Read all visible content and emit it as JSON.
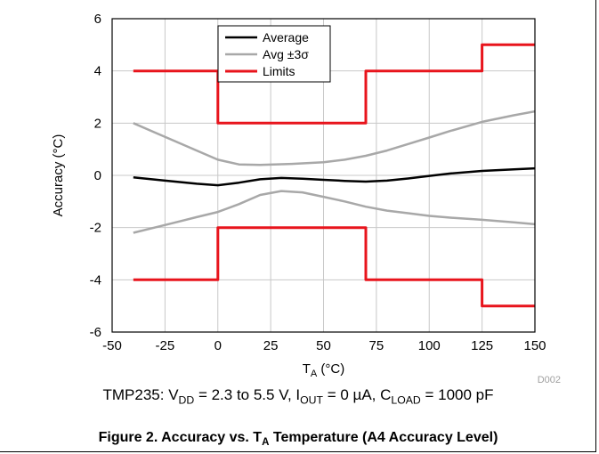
{
  "chart_data": {
    "type": "line",
    "xlabel_main": "T",
    "xlabel_sub": "A",
    "xlabel_unit": " (°C)",
    "ylabel": "Accuracy (°C)",
    "xlim": [
      -50,
      150
    ],
    "ylim": [
      -6,
      6
    ],
    "x_ticks": [
      -50,
      -25,
      0,
      25,
      50,
      75,
      100,
      125,
      150
    ],
    "y_ticks": [
      -6,
      -4,
      -2,
      0,
      2,
      4,
      6
    ],
    "grid": true,
    "legend_position": "top-center",
    "legend": [
      {
        "label": "Average",
        "color": "#000000"
      },
      {
        "label": "Avg ±3σ",
        "color": "#a8a8a8"
      },
      {
        "label": "Limits",
        "color": "#e8141c"
      }
    ],
    "series": [
      {
        "name": "Average",
        "color": "#000000",
        "points": [
          [
            -40,
            -0.08
          ],
          [
            -25,
            -0.2
          ],
          [
            -10,
            -0.32
          ],
          [
            0,
            -0.38
          ],
          [
            10,
            -0.28
          ],
          [
            20,
            -0.15
          ],
          [
            30,
            -0.1
          ],
          [
            40,
            -0.13
          ],
          [
            50,
            -0.17
          ],
          [
            60,
            -0.21
          ],
          [
            70,
            -0.24
          ],
          [
            80,
            -0.2
          ],
          [
            90,
            -0.12
          ],
          [
            100,
            -0.02
          ],
          [
            110,
            0.07
          ],
          [
            125,
            0.17
          ],
          [
            140,
            0.23
          ],
          [
            150,
            0.27
          ]
        ]
      },
      {
        "name": "Avg +3σ",
        "color": "#a8a8a8",
        "points": [
          [
            -40,
            2.0
          ],
          [
            -30,
            1.65
          ],
          [
            -20,
            1.3
          ],
          [
            -10,
            0.95
          ],
          [
            0,
            0.6
          ],
          [
            10,
            0.42
          ],
          [
            20,
            0.4
          ],
          [
            35,
            0.44
          ],
          [
            50,
            0.5
          ],
          [
            60,
            0.6
          ],
          [
            70,
            0.75
          ],
          [
            80,
            0.95
          ],
          [
            90,
            1.2
          ],
          [
            100,
            1.45
          ],
          [
            110,
            1.7
          ],
          [
            125,
            2.05
          ],
          [
            140,
            2.3
          ],
          [
            150,
            2.45
          ]
        ]
      },
      {
        "name": "Avg -3σ",
        "color": "#a8a8a8",
        "points": [
          [
            -40,
            -2.2
          ],
          [
            -30,
            -2.0
          ],
          [
            -20,
            -1.8
          ],
          [
            -10,
            -1.6
          ],
          [
            0,
            -1.4
          ],
          [
            10,
            -1.1
          ],
          [
            20,
            -0.75
          ],
          [
            30,
            -0.6
          ],
          [
            40,
            -0.65
          ],
          [
            50,
            -0.82
          ],
          [
            60,
            -1.0
          ],
          [
            70,
            -1.2
          ],
          [
            80,
            -1.35
          ],
          [
            90,
            -1.45
          ],
          [
            100,
            -1.55
          ],
          [
            110,
            -1.62
          ],
          [
            125,
            -1.7
          ],
          [
            140,
            -1.8
          ],
          [
            150,
            -1.87
          ]
        ]
      },
      {
        "name": "Upper limit",
        "color": "#e8141c",
        "points": [
          [
            -40,
            4
          ],
          [
            0,
            4
          ],
          [
            0,
            2
          ],
          [
            70,
            2
          ],
          [
            70,
            4
          ],
          [
            125,
            4
          ],
          [
            125,
            5
          ],
          [
            150,
            5
          ]
        ]
      },
      {
        "name": "Lower limit",
        "color": "#e8141c",
        "points": [
          [
            -40,
            -4
          ],
          [
            0,
            -4
          ],
          [
            0,
            -2
          ],
          [
            70,
            -2
          ],
          [
            70,
            -4
          ],
          [
            125,
            -4
          ],
          [
            125,
            -5
          ],
          [
            150,
            -5
          ]
        ]
      }
    ],
    "code": "D002"
  },
  "note": {
    "prefix": "TMP235: V",
    "vdd_sub": "DD",
    "mid1": " = 2.3 to 5.5 V, I",
    "iout_sub": "OUT",
    "mid2": " = 0 µA, C",
    "cload_sub": "LOAD",
    "suffix": " = 1000 pF"
  },
  "figure_title": {
    "prefix": "Figure 2. Accuracy vs. T",
    "sub": "A",
    "suffix": " Temperature (A4 Accuracy Level)"
  }
}
